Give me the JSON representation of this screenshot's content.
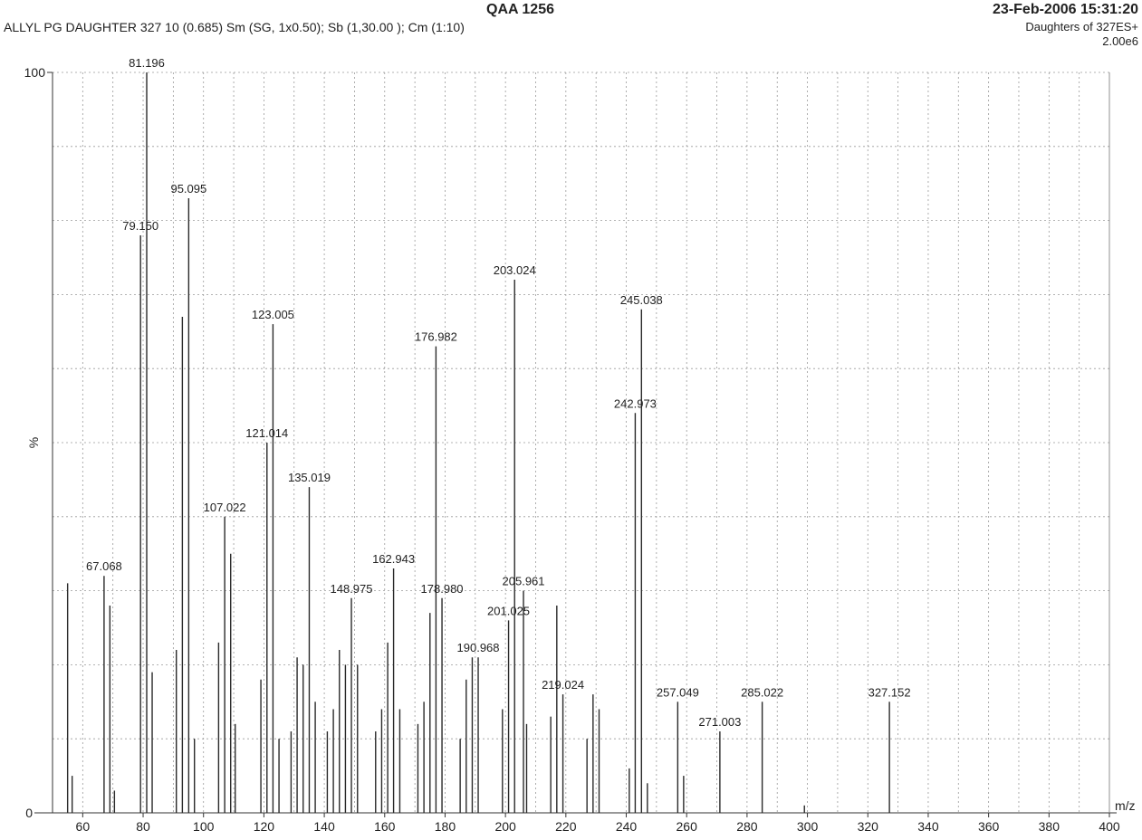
{
  "header": {
    "title": "QAA 1256",
    "datetime": "23-Feb-2006  15:31:20",
    "subtitle": "ALLYL PG DAUGHTER 327  10 (0.685) Sm (SG, 1x0.50); Sb (1,30.00 ); Cm (1:10)",
    "experiment": "Daughters of 327ES+",
    "scale": "2.00e6"
  },
  "chart_data": {
    "type": "bar",
    "xlabel": "m/z",
    "ylabel": "%",
    "xlim": [
      50,
      400
    ],
    "ylim": [
      0,
      100
    ],
    "x_ticks": [
      60,
      80,
      100,
      120,
      140,
      160,
      180,
      200,
      220,
      240,
      260,
      280,
      300,
      320,
      340,
      360,
      380,
      400
    ],
    "y_tick_labels": [
      "0",
      "100"
    ],
    "grid": true,
    "peaks": [
      {
        "mz": 55.0,
        "intensity": 31
      },
      {
        "mz": 56.5,
        "intensity": 5
      },
      {
        "mz": 67.068,
        "intensity": 32,
        "label": "67.068"
      },
      {
        "mz": 69.0,
        "intensity": 28
      },
      {
        "mz": 70.5,
        "intensity": 3
      },
      {
        "mz": 79.15,
        "intensity": 78,
        "label": "79.150"
      },
      {
        "mz": 81.196,
        "intensity": 100,
        "label": "81.196"
      },
      {
        "mz": 83.0,
        "intensity": 19
      },
      {
        "mz": 91.0,
        "intensity": 22
      },
      {
        "mz": 93.0,
        "intensity": 67
      },
      {
        "mz": 95.095,
        "intensity": 83,
        "label": "95.095"
      },
      {
        "mz": 97.0,
        "intensity": 10
      },
      {
        "mz": 105.0,
        "intensity": 23
      },
      {
        "mz": 107.022,
        "intensity": 40,
        "label": "107.022"
      },
      {
        "mz": 109.0,
        "intensity": 35
      },
      {
        "mz": 110.5,
        "intensity": 12
      },
      {
        "mz": 119.0,
        "intensity": 18
      },
      {
        "mz": 121.014,
        "intensity": 50,
        "label": "121.014"
      },
      {
        "mz": 123.005,
        "intensity": 66,
        "label": "123.005"
      },
      {
        "mz": 125.0,
        "intensity": 10
      },
      {
        "mz": 129.0,
        "intensity": 11
      },
      {
        "mz": 131.0,
        "intensity": 21
      },
      {
        "mz": 133.0,
        "intensity": 20
      },
      {
        "mz": 135.019,
        "intensity": 44,
        "label": "135.019"
      },
      {
        "mz": 137.0,
        "intensity": 15
      },
      {
        "mz": 141.0,
        "intensity": 11
      },
      {
        "mz": 143.0,
        "intensity": 14
      },
      {
        "mz": 145.0,
        "intensity": 22
      },
      {
        "mz": 147.0,
        "intensity": 20
      },
      {
        "mz": 148.975,
        "intensity": 29,
        "label": "148.975"
      },
      {
        "mz": 151.0,
        "intensity": 20
      },
      {
        "mz": 157.0,
        "intensity": 11
      },
      {
        "mz": 159.0,
        "intensity": 14
      },
      {
        "mz": 161.0,
        "intensity": 23
      },
      {
        "mz": 162.943,
        "intensity": 33,
        "label": "162.943"
      },
      {
        "mz": 165.0,
        "intensity": 14
      },
      {
        "mz": 171.0,
        "intensity": 12
      },
      {
        "mz": 173.0,
        "intensity": 15
      },
      {
        "mz": 175.0,
        "intensity": 27
      },
      {
        "mz": 176.982,
        "intensity": 63,
        "label": "176.982"
      },
      {
        "mz": 178.98,
        "intensity": 29,
        "label": "178.980"
      },
      {
        "mz": 185.0,
        "intensity": 10
      },
      {
        "mz": 187.0,
        "intensity": 18
      },
      {
        "mz": 189.0,
        "intensity": 21
      },
      {
        "mz": 190.968,
        "intensity": 21,
        "label": "190.968"
      },
      {
        "mz": 199.0,
        "intensity": 14
      },
      {
        "mz": 201.025,
        "intensity": 26,
        "label": "201.025"
      },
      {
        "mz": 203.024,
        "intensity": 72,
        "label": "203.024"
      },
      {
        "mz": 205.961,
        "intensity": 30,
        "label": "205.961"
      },
      {
        "mz": 207.0,
        "intensity": 12
      },
      {
        "mz": 215.0,
        "intensity": 13
      },
      {
        "mz": 217.0,
        "intensity": 28
      },
      {
        "mz": 219.024,
        "intensity": 16,
        "label": "219.024"
      },
      {
        "mz": 227.0,
        "intensity": 10
      },
      {
        "mz": 229.0,
        "intensity": 16
      },
      {
        "mz": 231.0,
        "intensity": 14
      },
      {
        "mz": 241.0,
        "intensity": 6
      },
      {
        "mz": 242.973,
        "intensity": 54,
        "label": "242.973"
      },
      {
        "mz": 245.038,
        "intensity": 68,
        "label": "245.038"
      },
      {
        "mz": 247.0,
        "intensity": 4
      },
      {
        "mz": 257.049,
        "intensity": 15,
        "label": "257.049"
      },
      {
        "mz": 259.0,
        "intensity": 5
      },
      {
        "mz": 271.003,
        "intensity": 11,
        "label": "271.003"
      },
      {
        "mz": 285.022,
        "intensity": 15,
        "label": "285.022"
      },
      {
        "mz": 299.0,
        "intensity": 1
      },
      {
        "mz": 327.152,
        "intensity": 15,
        "label": "327.152"
      }
    ]
  }
}
